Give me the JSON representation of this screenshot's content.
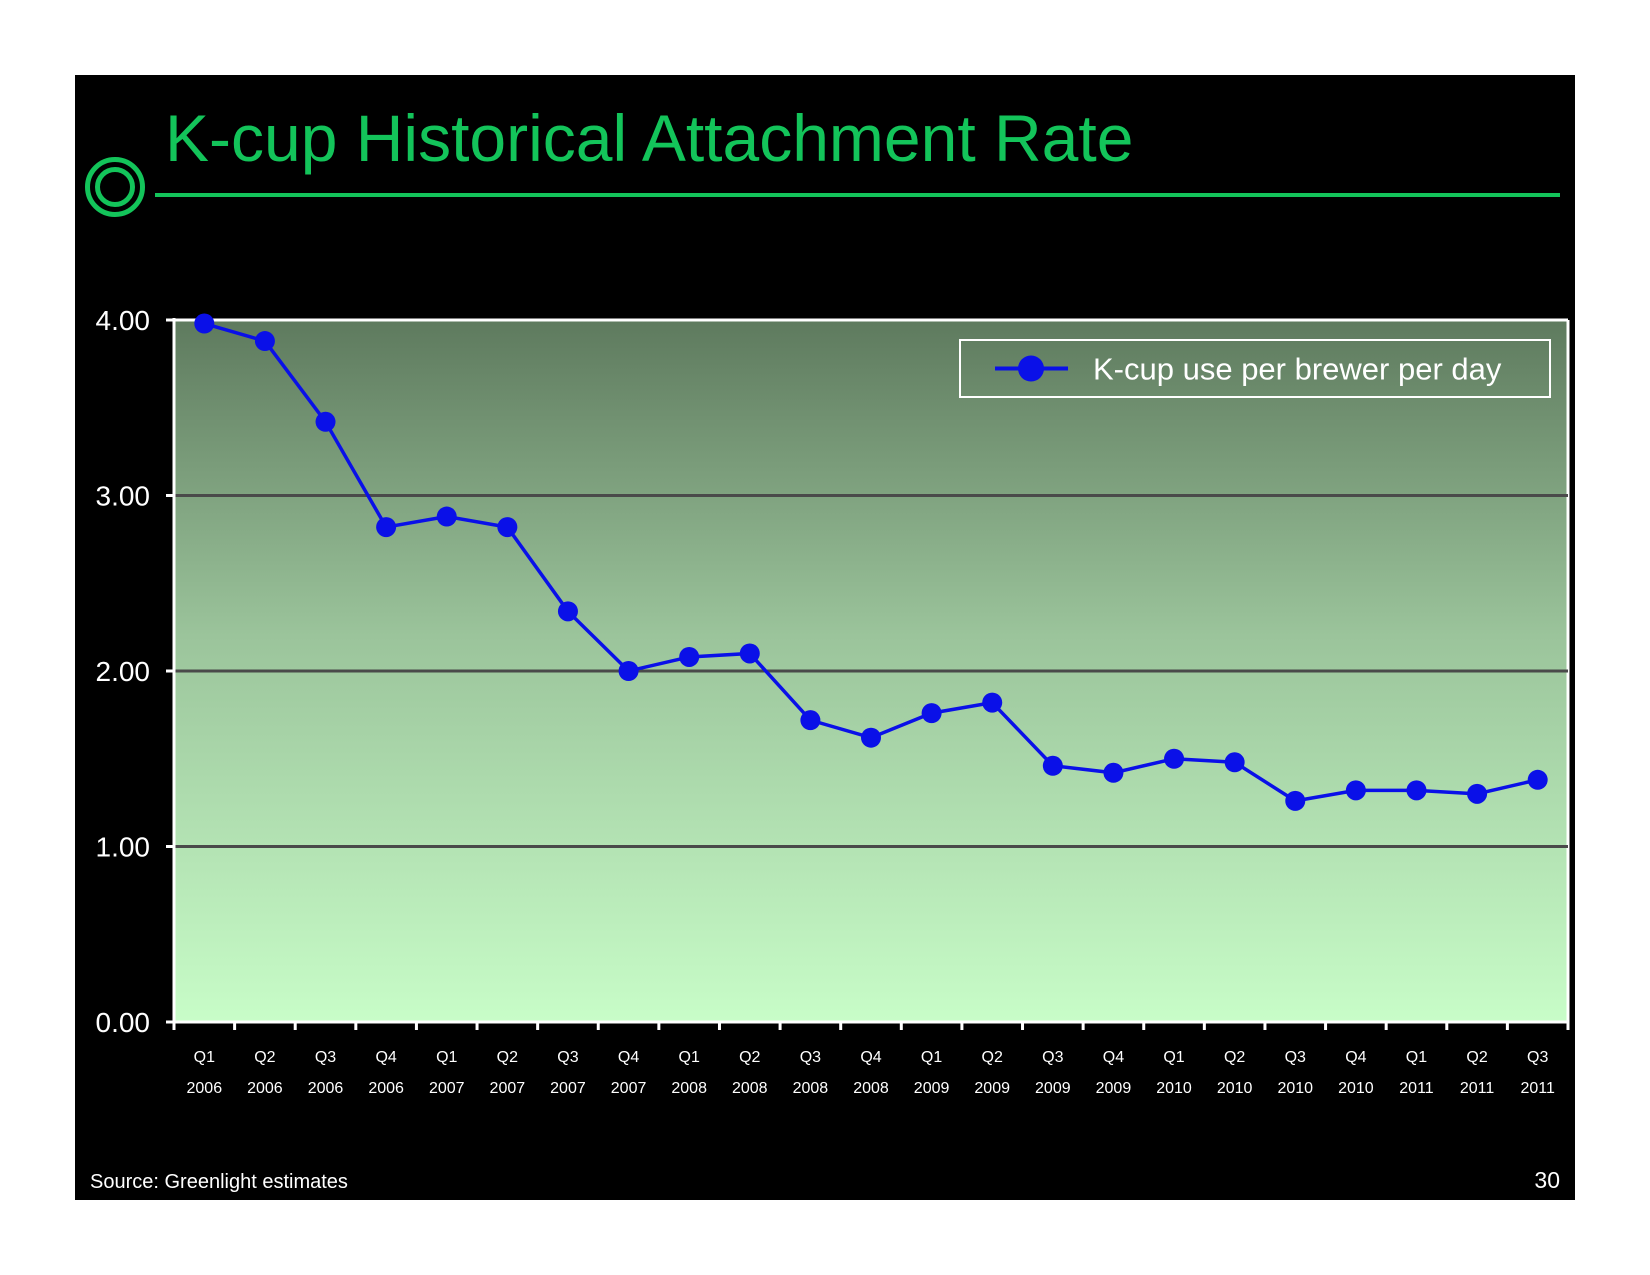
{
  "slide": {
    "title": "K-cup Historical Attachment Rate",
    "source": "Source:  Greenlight estimates",
    "page_number": "30",
    "accent_color": "#13c45a"
  },
  "chart_data": {
    "type": "line",
    "title": "",
    "xlabel": "",
    "ylabel": "",
    "ylim": [
      0,
      4
    ],
    "y_ticks": [
      "0.00",
      "1.00",
      "2.00",
      "3.00",
      "4.00"
    ],
    "grid": true,
    "legend_position": "top-right",
    "categories": [
      [
        "Q1",
        "2006"
      ],
      [
        "Q2",
        "2006"
      ],
      [
        "Q3",
        "2006"
      ],
      [
        "Q4",
        "2006"
      ],
      [
        "Q1",
        "2007"
      ],
      [
        "Q2",
        "2007"
      ],
      [
        "Q3",
        "2007"
      ],
      [
        "Q4",
        "2007"
      ],
      [
        "Q1",
        "2008"
      ],
      [
        "Q2",
        "2008"
      ],
      [
        "Q3",
        "2008"
      ],
      [
        "Q4",
        "2008"
      ],
      [
        "Q1",
        "2009"
      ],
      [
        "Q2",
        "2009"
      ],
      [
        "Q3",
        "2009"
      ],
      [
        "Q4",
        "2009"
      ],
      [
        "Q1",
        "2010"
      ],
      [
        "Q2",
        "2010"
      ],
      [
        "Q3",
        "2010"
      ],
      [
        "Q4",
        "2010"
      ],
      [
        "Q1",
        "2011"
      ],
      [
        "Q2",
        "2011"
      ],
      [
        "Q3",
        "2011"
      ]
    ],
    "series": [
      {
        "name": "K-cup use per brewer per day",
        "color": "#0a10e8",
        "values": [
          3.98,
          3.88,
          3.42,
          2.82,
          2.88,
          2.82,
          2.34,
          2.0,
          2.08,
          2.1,
          1.72,
          1.62,
          1.76,
          1.82,
          1.46,
          1.42,
          1.5,
          1.48,
          1.26,
          1.32,
          1.32,
          1.3,
          1.38
        ]
      }
    ],
    "plot_gradient": [
      "#5e7a5e",
      "#9bc49b",
      "#c8fdc8"
    ]
  }
}
